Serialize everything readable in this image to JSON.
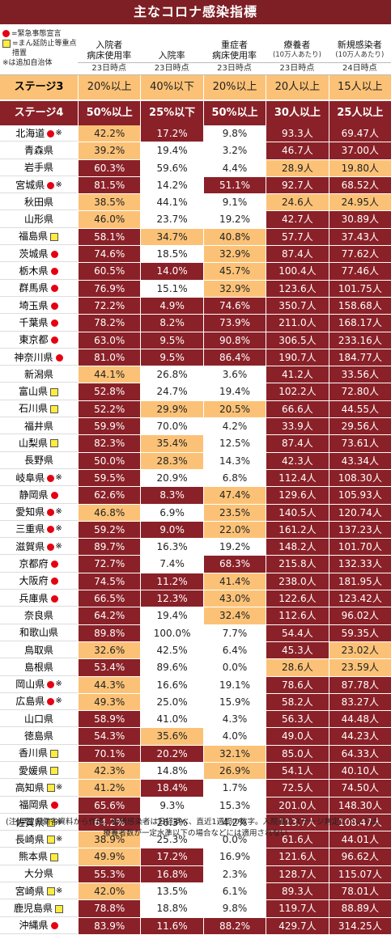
{
  "title": "主なコロナ感染指標",
  "legend": {
    "emergency": "=緊急事態宣言",
    "priority": "=まん延防止等重点措置",
    "added": "※は追加自治体"
  },
  "columns": [
    {
      "label1": "入院者",
      "label2": "病床使用率",
      "sub": "",
      "date": "23日時点"
    },
    {
      "label1": "",
      "label2": "入院率",
      "sub": "",
      "date": "23日時点"
    },
    {
      "label1": "重症者",
      "label2": "病床使用率",
      "sub": "",
      "date": "23日時点"
    },
    {
      "label1": "",
      "label2": "療養者",
      "sub": "(10万人あたり)",
      "date": "23日時点"
    },
    {
      "label1": "",
      "label2": "新規感染者",
      "sub": "(10万人あたり)",
      "date": "24日時点"
    }
  ],
  "stage3": {
    "label": "ステージ3",
    "values": [
      "20%以上",
      "40%以下",
      "20%以上",
      "20人以上",
      "15人以上"
    ]
  },
  "stage4": {
    "label": "ステージ4",
    "values": [
      "50%以上",
      "25%以下",
      "50%以上",
      "30人以上",
      "25人以上"
    ]
  },
  "rows": [
    {
      "name": "北海道",
      "m": "e",
      "add": true,
      "v": [
        "42.2%",
        "17.2%",
        "9.8%",
        "93.3人",
        "69.47人"
      ],
      "l": [
        3,
        4,
        0,
        4,
        4
      ]
    },
    {
      "name": "青森県",
      "m": "",
      "add": false,
      "v": [
        "39.2%",
        "19.4%",
        "3.2%",
        "46.7人",
        "37.00人"
      ],
      "l": [
        3,
        0,
        0,
        4,
        4
      ]
    },
    {
      "name": "岩手県",
      "m": "",
      "add": false,
      "v": [
        "60.3%",
        "59.6%",
        "4.4%",
        "28.9人",
        "19.80人"
      ],
      "l": [
        4,
        0,
        0,
        3,
        3
      ]
    },
    {
      "name": "宮城県",
      "m": "e",
      "add": true,
      "v": [
        "81.5%",
        "14.2%",
        "51.1%",
        "92.7人",
        "68.52人"
      ],
      "l": [
        4,
        0,
        4,
        4,
        4
      ]
    },
    {
      "name": "秋田県",
      "m": "",
      "add": false,
      "v": [
        "38.5%",
        "44.1%",
        "9.1%",
        "24.6人",
        "24.95人"
      ],
      "l": [
        3,
        0,
        0,
        3,
        3
      ]
    },
    {
      "name": "山形県",
      "m": "",
      "add": false,
      "v": [
        "46.0%",
        "23.7%",
        "19.2%",
        "42.7人",
        "30.89人"
      ],
      "l": [
        3,
        0,
        0,
        4,
        4
      ]
    },
    {
      "name": "福島県",
      "m": "p",
      "add": false,
      "v": [
        "58.1%",
        "34.7%",
        "40.8%",
        "57.7人",
        "37.43人"
      ],
      "l": [
        4,
        3,
        3,
        4,
        4
      ]
    },
    {
      "name": "茨城県",
      "m": "e",
      "add": false,
      "v": [
        "74.6%",
        "18.5%",
        "32.9%",
        "87.4人",
        "77.62人"
      ],
      "l": [
        4,
        0,
        3,
        4,
        4
      ]
    },
    {
      "name": "栃木県",
      "m": "e",
      "add": false,
      "v": [
        "60.5%",
        "14.0%",
        "45.7%",
        "100.4人",
        "77.46人"
      ],
      "l": [
        4,
        4,
        3,
        4,
        4
      ]
    },
    {
      "name": "群馬県",
      "m": "e",
      "add": false,
      "v": [
        "76.9%",
        "15.1%",
        "32.9%",
        "123.6人",
        "101.75人"
      ],
      "l": [
        4,
        0,
        3,
        4,
        4
      ]
    },
    {
      "name": "埼玉県",
      "m": "e",
      "add": false,
      "v": [
        "72.2%",
        "4.9%",
        "74.6%",
        "350.7人",
        "158.68人"
      ],
      "l": [
        4,
        4,
        4,
        4,
        4
      ]
    },
    {
      "name": "千葉県",
      "m": "e",
      "add": false,
      "v": [
        "78.2%",
        "8.2%",
        "73.9%",
        "211.0人",
        "168.17人"
      ],
      "l": [
        4,
        4,
        4,
        4,
        4
      ]
    },
    {
      "name": "東京都",
      "m": "e",
      "add": false,
      "v": [
        "63.0%",
        "9.5%",
        "90.8%",
        "306.5人",
        "233.16人"
      ],
      "l": [
        4,
        4,
        4,
        4,
        4
      ]
    },
    {
      "name": "神奈川県",
      "m": "e",
      "add": false,
      "v": [
        "81.0%",
        "9.5%",
        "86.4%",
        "190.7人",
        "184.77人"
      ],
      "l": [
        4,
        4,
        4,
        4,
        4
      ]
    },
    {
      "name": "新潟県",
      "m": "",
      "add": false,
      "v": [
        "44.1%",
        "26.8%",
        "3.6%",
        "41.2人",
        "33.56人"
      ],
      "l": [
        3,
        0,
        0,
        4,
        4
      ]
    },
    {
      "name": "富山県",
      "m": "p",
      "add": false,
      "v": [
        "52.8%",
        "24.7%",
        "19.4%",
        "102.2人",
        "72.80人"
      ],
      "l": [
        4,
        0,
        0,
        4,
        4
      ]
    },
    {
      "name": "石川県",
      "m": "p",
      "add": false,
      "v": [
        "52.2%",
        "29.9%",
        "20.5%",
        "66.6人",
        "44.55人"
      ],
      "l": [
        4,
        3,
        3,
        4,
        4
      ]
    },
    {
      "name": "福井県",
      "m": "",
      "add": false,
      "v": [
        "59.9%",
        "70.0%",
        "4.2%",
        "33.9人",
        "29.56人"
      ],
      "l": [
        4,
        0,
        0,
        4,
        4
      ]
    },
    {
      "name": "山梨県",
      "m": "p",
      "add": false,
      "v": [
        "82.3%",
        "35.4%",
        "12.5%",
        "87.4人",
        "73.61人"
      ],
      "l": [
        4,
        3,
        0,
        4,
        4
      ]
    },
    {
      "name": "長野県",
      "m": "",
      "add": false,
      "v": [
        "50.0%",
        "28.3%",
        "14.3%",
        "42.3人",
        "43.34人"
      ],
      "l": [
        4,
        3,
        0,
        4,
        4
      ]
    },
    {
      "name": "岐阜県",
      "m": "e",
      "add": true,
      "v": [
        "59.5%",
        "20.9%",
        "6.8%",
        "112.4人",
        "108.30人"
      ],
      "l": [
        4,
        0,
        0,
        4,
        4
      ]
    },
    {
      "name": "静岡県",
      "m": "e",
      "add": false,
      "v": [
        "62.6%",
        "8.3%",
        "47.4%",
        "129.6人",
        "105.93人"
      ],
      "l": [
        4,
        4,
        3,
        4,
        4
      ]
    },
    {
      "name": "愛知県",
      "m": "e",
      "add": true,
      "v": [
        "46.8%",
        "6.9%",
        "23.5%",
        "140.5人",
        "120.74人"
      ],
      "l": [
        3,
        0,
        3,
        4,
        4
      ]
    },
    {
      "name": "三重県",
      "m": "e",
      "add": true,
      "v": [
        "59.2%",
        "9.0%",
        "22.0%",
        "161.2人",
        "137.23人"
      ],
      "l": [
        4,
        4,
        3,
        4,
        4
      ]
    },
    {
      "name": "滋賀県",
      "m": "e",
      "add": true,
      "v": [
        "89.7%",
        "16.3%",
        "19.2%",
        "148.2人",
        "101.70人"
      ],
      "l": [
        4,
        0,
        0,
        4,
        4
      ]
    },
    {
      "name": "京都府",
      "m": "e",
      "add": false,
      "v": [
        "72.7%",
        "7.4%",
        "68.3%",
        "215.8人",
        "132.33人"
      ],
      "l": [
        4,
        0,
        4,
        4,
        4
      ]
    },
    {
      "name": "大阪府",
      "m": "e",
      "add": false,
      "v": [
        "74.5%",
        "11.2%",
        "41.4%",
        "238.0人",
        "181.95人"
      ],
      "l": [
        4,
        4,
        3,
        4,
        4
      ]
    },
    {
      "name": "兵庫県",
      "m": "e",
      "add": false,
      "v": [
        "66.5%",
        "12.3%",
        "43.0%",
        "122.6人",
        "123.42人"
      ],
      "l": [
        4,
        4,
        3,
        4,
        4
      ]
    },
    {
      "name": "奈良県",
      "m": "",
      "add": false,
      "v": [
        "64.2%",
        "19.4%",
        "32.4%",
        "112.6人",
        "96.02人"
      ],
      "l": [
        4,
        0,
        3,
        4,
        4
      ]
    },
    {
      "name": "和歌山県",
      "m": "",
      "add": false,
      "v": [
        "89.8%",
        "100.0%",
        "7.7%",
        "54.4人",
        "59.35人"
      ],
      "l": [
        4,
        0,
        0,
        4,
        4
      ]
    },
    {
      "name": "鳥取県",
      "m": "",
      "add": false,
      "v": [
        "32.6%",
        "42.5%",
        "6.4%",
        "45.3人",
        "23.02人"
      ],
      "l": [
        3,
        0,
        0,
        4,
        3
      ]
    },
    {
      "name": "島根県",
      "m": "",
      "add": false,
      "v": [
        "53.4%",
        "89.6%",
        "0.0%",
        "28.6人",
        "23.59人"
      ],
      "l": [
        4,
        0,
        0,
        3,
        3
      ]
    },
    {
      "name": "岡山県",
      "m": "e",
      "add": true,
      "v": [
        "44.3%",
        "16.6%",
        "19.1%",
        "78.6人",
        "87.78人"
      ],
      "l": [
        3,
        0,
        0,
        4,
        4
      ]
    },
    {
      "name": "広島県",
      "m": "e",
      "add": true,
      "v": [
        "49.3%",
        "25.0%",
        "15.9%",
        "58.2人",
        "83.27人"
      ],
      "l": [
        3,
        0,
        0,
        4,
        4
      ]
    },
    {
      "name": "山口県",
      "m": "",
      "add": false,
      "v": [
        "58.9%",
        "41.0%",
        "4.3%",
        "56.3人",
        "44.48人"
      ],
      "l": [
        4,
        0,
        0,
        4,
        4
      ]
    },
    {
      "name": "徳島県",
      "m": "",
      "add": false,
      "v": [
        "54.3%",
        "35.6%",
        "4.0%",
        "49.0人",
        "44.23人"
      ],
      "l": [
        4,
        3,
        0,
        4,
        4
      ]
    },
    {
      "name": "香川県",
      "m": "p",
      "add": false,
      "v": [
        "70.1%",
        "20.2%",
        "32.1%",
        "85.0人",
        "64.33人"
      ],
      "l": [
        4,
        4,
        3,
        4,
        4
      ]
    },
    {
      "name": "愛媛県",
      "m": "p",
      "add": false,
      "v": [
        "42.3%",
        "14.8%",
        "26.9%",
        "54.1人",
        "40.10人"
      ],
      "l": [
        3,
        0,
        3,
        4,
        4
      ]
    },
    {
      "name": "高知県",
      "m": "p",
      "add": true,
      "v": [
        "41.2%",
        "18.4%",
        "1.7%",
        "72.5人",
        "74.50人"
      ],
      "l": [
        3,
        4,
        0,
        4,
        4
      ]
    },
    {
      "name": "福岡県",
      "m": "e",
      "add": false,
      "v": [
        "65.6%",
        "9.3%",
        "15.3%",
        "201.0人",
        "148.30人"
      ],
      "l": [
        4,
        0,
        0,
        4,
        4
      ]
    },
    {
      "name": "佐賀県",
      "m": "p",
      "add": true,
      "v": [
        "64.2%",
        "26.3%",
        "4.2%",
        "113.7人",
        "108.47人"
      ],
      "l": [
        4,
        0,
        0,
        4,
        4
      ]
    },
    {
      "name": "長崎県",
      "m": "p",
      "add": true,
      "v": [
        "38.9%",
        "25.3%",
        "0.0%",
        "61.6人",
        "44.01人"
      ],
      "l": [
        3,
        0,
        0,
        4,
        4
      ]
    },
    {
      "name": "熊本県",
      "m": "p",
      "add": false,
      "v": [
        "49.9%",
        "17.2%",
        "16.9%",
        "121.6人",
        "96.62人"
      ],
      "l": [
        3,
        4,
        0,
        4,
        4
      ]
    },
    {
      "name": "大分県",
      "m": "",
      "add": false,
      "v": [
        "55.3%",
        "16.8%",
        "2.3%",
        "128.7人",
        "115.07人"
      ],
      "l": [
        4,
        4,
        0,
        4,
        4
      ]
    },
    {
      "name": "宮崎県",
      "m": "p",
      "add": true,
      "v": [
        "42.0%",
        "13.5%",
        "6.1%",
        "89.3人",
        "78.01人"
      ],
      "l": [
        3,
        0,
        0,
        4,
        4
      ]
    },
    {
      "name": "鹿児島県",
      "m": "p",
      "add": false,
      "v": [
        "78.8%",
        "18.8%",
        "9.8%",
        "119.7人",
        "88.89人"
      ],
      "l": [
        4,
        0,
        0,
        4,
        4
      ]
    },
    {
      "name": "沖縄県",
      "m": "e",
      "add": false,
      "v": [
        "83.9%",
        "11.6%",
        "88.2%",
        "429.7人",
        "314.25人"
      ],
      "l": [
        4,
        4,
        4,
        4,
        4
      ]
    }
  ],
  "note": "(注)厚生労働省資料から作成。新規感染者は日経調べ、直近1週間の数字。入院率のステージ判定については、療養者数が一定水準以下の場合などには適用されない",
  "colors": {
    "stage3": "#fbc277",
    "stage4": "#8a2128",
    "emergency": "#e50012",
    "priority": "#ffec3e"
  }
}
